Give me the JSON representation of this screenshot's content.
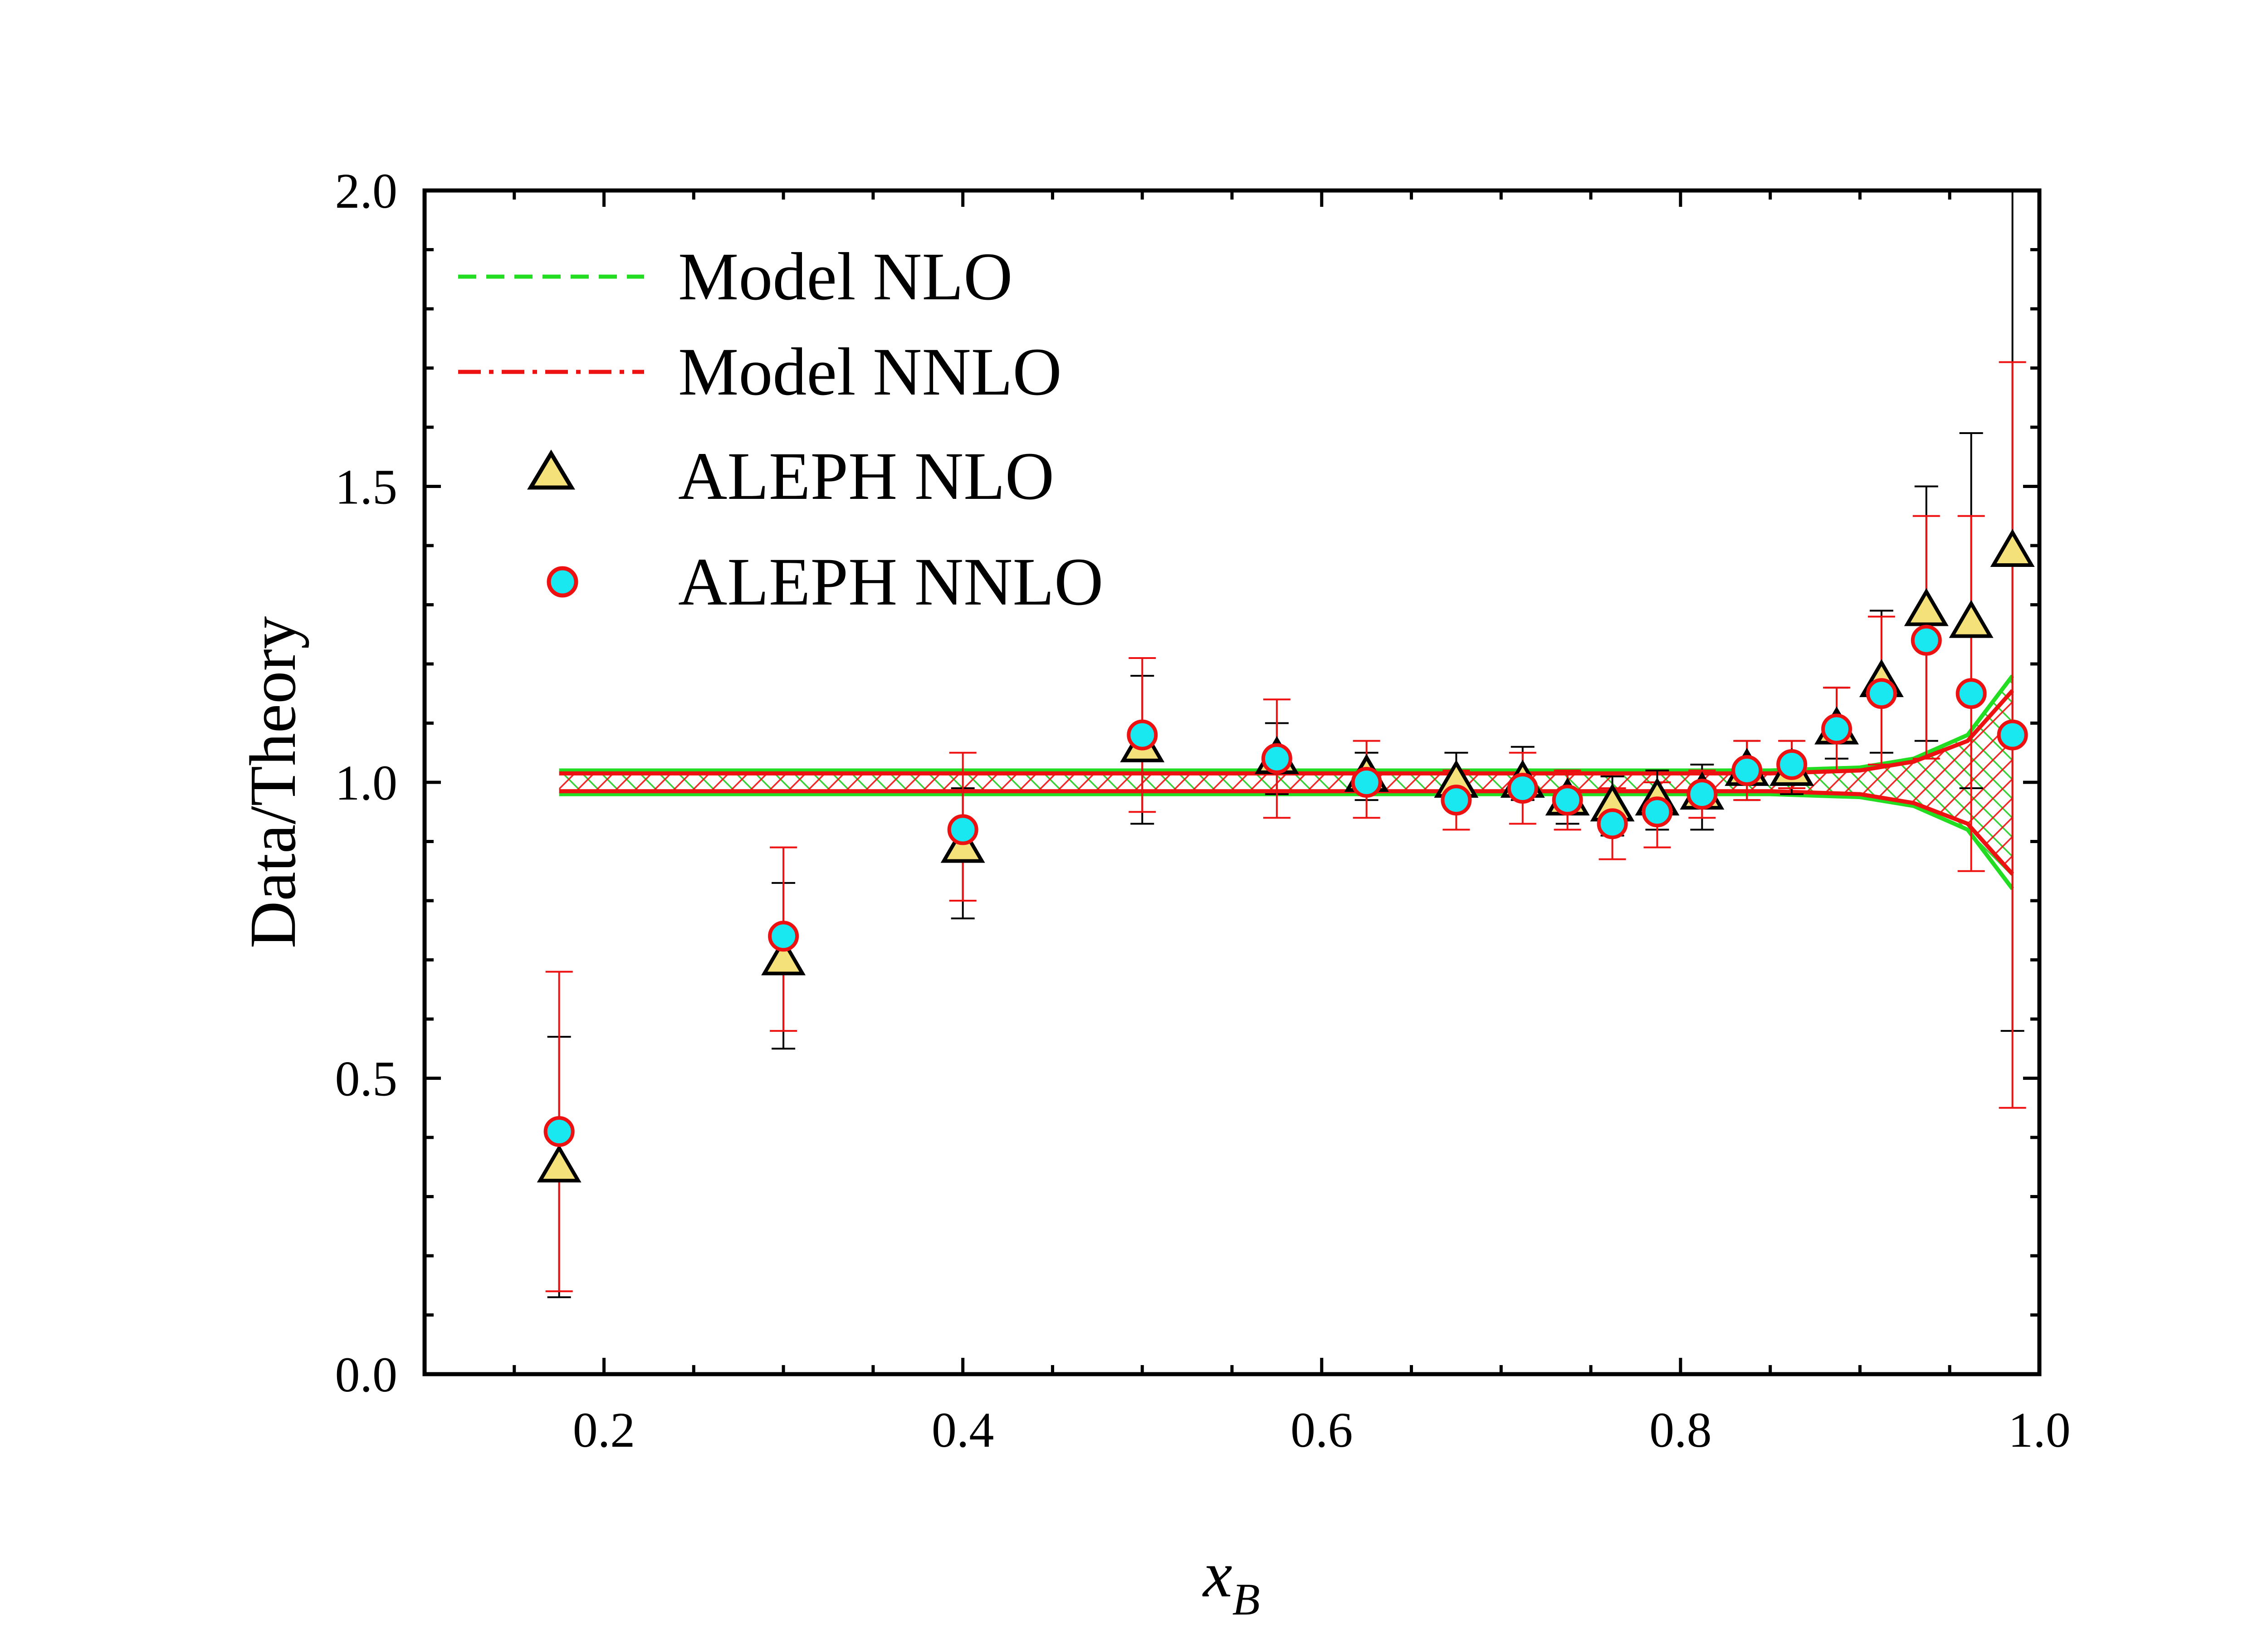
{
  "chart_data": {
    "type": "scatter",
    "title": "",
    "xlabel": "x",
    "xlabel_sub": "B",
    "ylabel": "Data/Theory",
    "xlim": [
      0.1,
      1.0
    ],
    "ylim": [
      0.0,
      2.0
    ],
    "xticks": [
      0.2,
      0.4,
      0.6,
      0.8,
      1.0
    ],
    "xtick_labels": [
      "0.2",
      "0.4",
      "0.6",
      "0.8",
      "1.0"
    ],
    "yticks": [
      0.0,
      0.5,
      1.0,
      1.5,
      2.0
    ],
    "ytick_labels": [
      "0.0",
      "0.5",
      "1.0",
      "1.5",
      "2.0"
    ],
    "grid": false,
    "legend_position": "top-left",
    "bands": [
      {
        "name": "Model NLO",
        "style": "dashed",
        "color": "#22dd22",
        "x": [
          0.175,
          0.5,
          0.7,
          0.85,
          0.9,
          0.93,
          0.96,
          0.985
        ],
        "upper": [
          1.02,
          1.02,
          1.02,
          1.02,
          1.025,
          1.04,
          1.08,
          1.18
        ],
        "lower": [
          0.98,
          0.98,
          0.98,
          0.98,
          0.975,
          0.96,
          0.92,
          0.82
        ]
      },
      {
        "name": "Model NNLO",
        "style": "dash-dot",
        "color": "#ee1111",
        "x": [
          0.175,
          0.5,
          0.7,
          0.85,
          0.9,
          0.93,
          0.96,
          0.985
        ],
        "upper": [
          1.015,
          1.015,
          1.015,
          1.015,
          1.02,
          1.035,
          1.07,
          1.155
        ],
        "lower": [
          0.985,
          0.985,
          0.985,
          0.985,
          0.98,
          0.965,
          0.93,
          0.845
        ]
      }
    ],
    "series": [
      {
        "name": "ALEPH NLO",
        "marker": "triangle",
        "fill": "#f5e17a",
        "stroke": "#000000",
        "x": [
          0.175,
          0.3,
          0.4,
          0.5,
          0.575,
          0.625,
          0.675,
          0.712,
          0.737,
          0.762,
          0.787,
          0.812,
          0.837,
          0.862,
          0.887,
          0.912,
          0.937,
          0.962,
          0.985
        ],
        "y": [
          0.35,
          0.7,
          0.89,
          1.06,
          1.04,
          1.01,
          1.0,
          1.0,
          0.97,
          0.96,
          0.97,
          0.98,
          1.02,
          1.02,
          1.09,
          1.17,
          1.29,
          1.27,
          1.39
        ],
        "err_low": [
          0.22,
          0.15,
          0.12,
          0.13,
          0.06,
          0.04,
          0.03,
          0.03,
          0.04,
          0.05,
          0.05,
          0.06,
          0.05,
          0.04,
          0.05,
          0.12,
          0.22,
          0.28,
          0.81
        ],
        "err_high": [
          0.22,
          0.13,
          0.1,
          0.12,
          0.06,
          0.04,
          0.05,
          0.06,
          0.05,
          0.05,
          0.05,
          0.05,
          0.05,
          0.05,
          0.07,
          0.12,
          0.21,
          0.32,
          0.61
        ]
      },
      {
        "name": "ALEPH NNLO",
        "marker": "circle",
        "fill": "#19e8f0",
        "stroke": "#ee1111",
        "x": [
          0.175,
          0.3,
          0.4,
          0.5,
          0.575,
          0.625,
          0.675,
          0.712,
          0.737,
          0.762,
          0.787,
          0.812,
          0.837,
          0.862,
          0.887,
          0.912,
          0.937,
          0.962,
          0.985
        ],
        "y": [
          0.41,
          0.74,
          0.92,
          1.08,
          1.04,
          1.0,
          0.97,
          0.99,
          0.97,
          0.93,
          0.95,
          0.98,
          1.02,
          1.03,
          1.09,
          1.15,
          1.24,
          1.15,
          1.08
        ],
        "err_low": [
          0.27,
          0.16,
          0.12,
          0.13,
          0.1,
          0.06,
          0.05,
          0.06,
          0.05,
          0.06,
          0.06,
          0.04,
          0.05,
          0.04,
          0.07,
          0.12,
          0.2,
          0.3,
          0.63
        ],
        "err_high": [
          0.27,
          0.15,
          0.13,
          0.13,
          0.1,
          0.07,
          0.05,
          0.06,
          0.05,
          0.06,
          0.05,
          0.04,
          0.05,
          0.04,
          0.07,
          0.13,
          0.21,
          0.3,
          0.63
        ]
      }
    ]
  }
}
